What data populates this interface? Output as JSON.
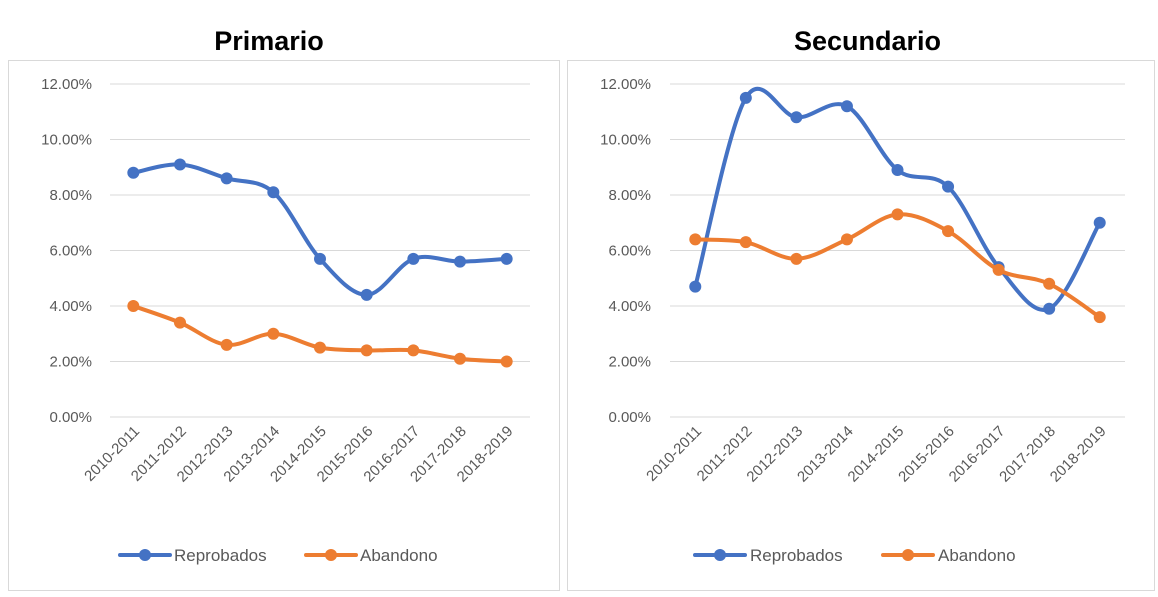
{
  "chart_data": [
    {
      "type": "line",
      "title": "Primario",
      "categories": [
        "2010-2011",
        "2011-2012",
        "2012-2013",
        "2013-2014",
        "2014-2015",
        "2015-2016",
        "2016-2017",
        "2017-2018",
        "2018-2019"
      ],
      "y_ticks": [
        "0.00%",
        "2.00%",
        "4.00%",
        "6.00%",
        "8.00%",
        "10.00%",
        "12.00%"
      ],
      "ylim": [
        0,
        12
      ],
      "grid": true,
      "legend_position": "bottom",
      "series": [
        {
          "name": "Reprobados",
          "color": "#4472c4",
          "values": [
            8.8,
            9.1,
            8.6,
            8.1,
            5.7,
            4.4,
            5.7,
            5.6,
            5.7
          ]
        },
        {
          "name": "Abandono",
          "color": "#ed7d31",
          "values": [
            4.0,
            3.4,
            2.6,
            3.0,
            2.5,
            2.4,
            2.4,
            2.1,
            2.0
          ]
        }
      ]
    },
    {
      "type": "line",
      "title": "Secundario",
      "categories": [
        "2010-2011",
        "2011-2012",
        "2012-2013",
        "2013-2014",
        "2014-2015",
        "2015-2016",
        "2016-2017",
        "2017-2018",
        "2018-2019"
      ],
      "y_ticks": [
        "0.00%",
        "2.00%",
        "4.00%",
        "6.00%",
        "8.00%",
        "10.00%",
        "12.00%"
      ],
      "ylim": [
        0,
        12
      ],
      "grid": true,
      "legend_position": "bottom",
      "series": [
        {
          "name": "Reprobados",
          "color": "#4472c4",
          "values": [
            4.7,
            11.5,
            10.8,
            11.2,
            8.9,
            8.3,
            5.4,
            3.9,
            7.0
          ]
        },
        {
          "name": "Abandono",
          "color": "#ed7d31",
          "values": [
            6.4,
            6.3,
            5.7,
            6.4,
            7.3,
            6.7,
            5.3,
            4.8,
            3.6
          ]
        }
      ]
    }
  ]
}
